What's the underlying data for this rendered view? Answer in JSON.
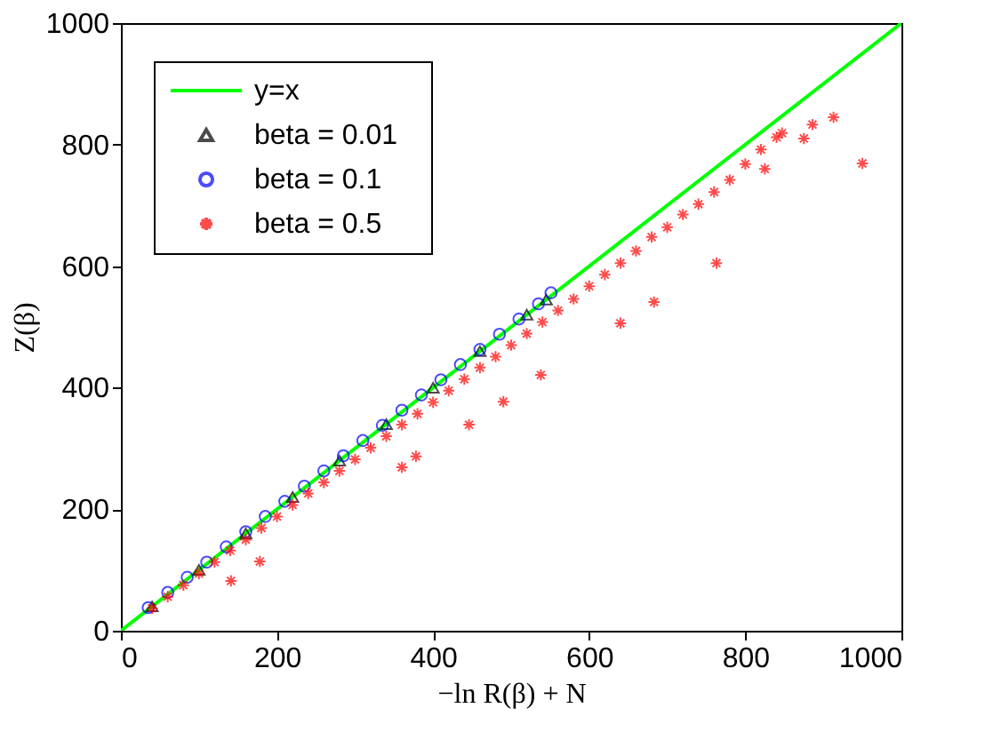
{
  "chart_data": {
    "type": "scatter",
    "xlabel": "−ln R(β) + N",
    "ylabel": "Z(β)",
    "xlim": [
      0,
      1000
    ],
    "ylim": [
      0,
      1000
    ],
    "xticks": [
      0,
      200,
      400,
      600,
      800,
      1000
    ],
    "yticks": [
      0,
      200,
      400,
      600,
      800,
      1000
    ],
    "legend": "top left",
    "grid": false,
    "series": [
      {
        "name": "y=x",
        "type": "line",
        "color": "#00ff00",
        "x": [
          0,
          1000
        ],
        "values": [
          0,
          1000
        ]
      },
      {
        "name": "beta = 0.01",
        "color": "#000000",
        "marker": "triangle",
        "x": [
          40,
          100,
          160,
          220,
          280,
          340,
          400,
          460,
          520,
          545
        ],
        "values": [
          40,
          100,
          160,
          220,
          280,
          340,
          400,
          460,
          520,
          545
        ]
      },
      {
        "name": "beta = 0.1",
        "color": "#0000ff",
        "marker": "circle",
        "x": [
          35,
          60,
          85,
          110,
          135,
          160,
          185,
          210,
          235,
          260,
          285,
          310,
          335,
          360,
          385,
          410,
          435,
          460,
          485,
          510,
          535,
          551
        ],
        "values": [
          38,
          63,
          88,
          113,
          138,
          163,
          188,
          213,
          238,
          263,
          288,
          313,
          338,
          363,
          388,
          413,
          438,
          463,
          488,
          513,
          538,
          556
        ]
      },
      {
        "name": "beta = 0.5",
        "color": "#ff0000",
        "marker": "cross",
        "x": [
          40,
          60,
          80,
          100,
          120,
          140,
          160,
          180,
          200,
          220,
          240,
          260,
          280,
          300,
          320,
          340,
          360,
          380,
          400,
          420,
          440,
          460,
          480,
          500,
          520,
          540,
          560,
          580,
          600,
          620,
          640,
          660,
          680,
          700,
          720,
          740,
          760,
          780,
          800,
          820,
          840,
          847,
          886,
          913,
          875,
          950,
          825,
          763,
          683,
          640,
          538,
          490,
          446,
          360,
          378,
          178,
          141
        ],
        "values": [
          37,
          56,
          75,
          94,
          113,
          132,
          150,
          169,
          188,
          207,
          226,
          244,
          263,
          282,
          301,
          320,
          339,
          357,
          376,
          395,
          414,
          433,
          451,
          470,
          489,
          508,
          527,
          546,
          567,
          586,
          605,
          625,
          648,
          664,
          685,
          702,
          722,
          742,
          768,
          792,
          812,
          819,
          833,
          845,
          810,
          769,
          760,
          605,
          541,
          506,
          421,
          377,
          339,
          269,
          287,
          114,
          82
        ]
      }
    ]
  }
}
